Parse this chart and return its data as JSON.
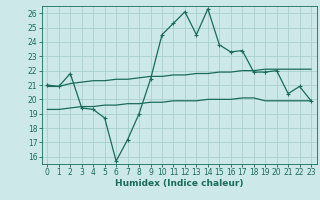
{
  "x": [
    0,
    1,
    2,
    3,
    4,
    5,
    6,
    7,
    8,
    9,
    10,
    11,
    12,
    13,
    14,
    15,
    16,
    17,
    18,
    19,
    20,
    21,
    22,
    23
  ],
  "line_main": [
    21.0,
    20.9,
    21.8,
    19.4,
    19.3,
    18.7,
    15.7,
    17.2,
    19.0,
    21.4,
    24.5,
    25.3,
    26.1,
    24.5,
    26.3,
    23.8,
    23.3,
    23.4,
    21.9,
    21.9,
    22.0,
    20.4,
    20.9,
    19.9
  ],
  "line_upper": [
    20.9,
    20.9,
    21.1,
    21.2,
    21.3,
    21.3,
    21.4,
    21.4,
    21.5,
    21.6,
    21.6,
    21.7,
    21.7,
    21.8,
    21.8,
    21.9,
    21.9,
    22.0,
    22.0,
    22.1,
    22.1,
    22.1,
    22.1,
    22.1
  ],
  "line_lower": [
    19.3,
    19.3,
    19.4,
    19.5,
    19.5,
    19.6,
    19.6,
    19.7,
    19.7,
    19.8,
    19.8,
    19.9,
    19.9,
    19.9,
    20.0,
    20.0,
    20.0,
    20.1,
    20.1,
    19.9,
    19.9,
    19.9,
    19.9,
    19.9
  ],
  "color_main": "#1a6b5a",
  "bg_color": "#cce8e8",
  "grid_color": "#aacfcf",
  "xlabel": "Humidex (Indice chaleur)",
  "ylim": [
    15.5,
    26.5
  ],
  "xlim": [
    -0.5,
    23.5
  ],
  "yticks": [
    16,
    17,
    18,
    19,
    20,
    21,
    22,
    23,
    24,
    25,
    26
  ],
  "xticks": [
    0,
    1,
    2,
    3,
    4,
    5,
    6,
    7,
    8,
    9,
    10,
    11,
    12,
    13,
    14,
    15,
    16,
    17,
    18,
    19,
    20,
    21,
    22,
    23
  ],
  "marker_size": 3.0,
  "linewidth": 0.9,
  "tick_labelsize": 5.5,
  "xlabel_fontsize": 6.5
}
